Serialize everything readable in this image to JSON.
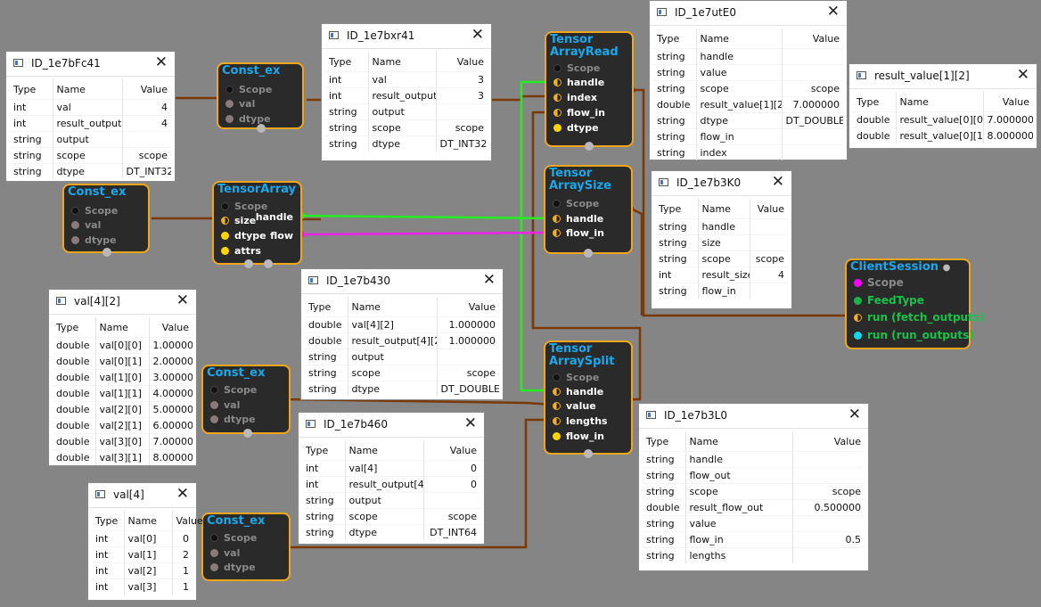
{
  "nodes": {
    "const1": {
      "title": "Const_ex",
      "ports": [
        "Scope",
        "val",
        "dtype"
      ]
    },
    "const2": {
      "title": "Const_ex",
      "ports": [
        "Scope",
        "val",
        "dtype"
      ]
    },
    "const3": {
      "title": "Const_ex",
      "ports": [
        "Scope",
        "val",
        "dtype"
      ]
    },
    "const4": {
      "title": "Const_ex",
      "ports": [
        "Scope",
        "val",
        "dtype"
      ]
    },
    "tensor_array": {
      "title": "TensorArray",
      "ports": [
        "Scope",
        "size",
        "dtype",
        "attrs"
      ],
      "outputs": [
        "handle",
        "flow"
      ]
    },
    "ta_read": {
      "title_line1": "Tensor",
      "title_line2": "ArrayRead",
      "ports": [
        "Scope",
        "handle",
        "index",
        "flow_in",
        "dtype"
      ]
    },
    "ta_size": {
      "title_line1": "Tensor",
      "title_line2": "ArraySize",
      "ports": [
        "Scope",
        "handle",
        "flow_in"
      ]
    },
    "ta_split": {
      "title_line1": "Tensor",
      "title_line2": "ArraySplit",
      "ports": [
        "Scope",
        "handle",
        "value",
        "lengths",
        "flow_in"
      ]
    },
    "client_session": {
      "title": "ClientSession",
      "ports": [
        "Scope",
        "FeedType",
        "run (fetch_outputs)",
        "run (run_outputs)"
      ]
    }
  },
  "windows": {
    "w_bfc41": {
      "title": "ID_1e7bFc41",
      "headers": [
        "Type",
        "Name",
        "Value"
      ],
      "rows": [
        [
          "int",
          "val",
          "4"
        ],
        [
          "int",
          "result_output",
          "4"
        ],
        [
          "string",
          "output",
          ""
        ],
        [
          "string",
          "scope",
          "scope"
        ],
        [
          "string",
          "dtype",
          "DT_INT32"
        ]
      ]
    },
    "w_bxr41": {
      "title": "ID_1e7bxr41",
      "headers": [
        "Type",
        "Name",
        "Value"
      ],
      "rows": [
        [
          "int",
          "val",
          "3"
        ],
        [
          "int",
          "result_output",
          "3"
        ],
        [
          "string",
          "output",
          ""
        ],
        [
          "string",
          "scope",
          "scope"
        ],
        [
          "string",
          "dtype",
          "DT_INT32"
        ]
      ]
    },
    "w_ute0": {
      "title": "ID_1e7utE0",
      "headers": [
        "Type",
        "Name",
        "Value"
      ],
      "rows": [
        [
          "string",
          "handle",
          ""
        ],
        [
          "string",
          "value",
          ""
        ],
        [
          "string",
          "scope",
          "scope"
        ],
        [
          "double",
          "result_value[1][2]",
          "7.000000"
        ],
        [
          "string",
          "dtype",
          "DT_DOUBLE"
        ],
        [
          "string",
          "flow_in",
          ""
        ],
        [
          "string",
          "index",
          ""
        ]
      ]
    },
    "w_result": {
      "title": "result_value[1][2]",
      "headers": [
        "Type",
        "Name",
        "Value"
      ],
      "rows": [
        [
          "double",
          "result_value[0][0]",
          "7.000000"
        ],
        [
          "double",
          "result_value[0][1]",
          "8.000000"
        ]
      ]
    },
    "w_b3k0": {
      "title": "ID_1e7b3K0",
      "headers": [
        "Type",
        "Name",
        "Value"
      ],
      "rows": [
        [
          "string",
          "handle",
          ""
        ],
        [
          "string",
          "size",
          ""
        ],
        [
          "string",
          "scope",
          "scope"
        ],
        [
          "int",
          "result_size",
          "4"
        ],
        [
          "string",
          "flow_in",
          ""
        ]
      ]
    },
    "w_val42": {
      "title": "val[4][2]",
      "headers": [
        "Type",
        "Name",
        "Value"
      ],
      "rows": [
        [
          "double",
          "val[0][0]",
          "1.000000"
        ],
        [
          "double",
          "val[0][1]",
          "2.000000"
        ],
        [
          "double",
          "val[1][0]",
          "3.000000"
        ],
        [
          "double",
          "val[1][1]",
          "4.000000"
        ],
        [
          "double",
          "val[2][0]",
          "5.000000"
        ],
        [
          "double",
          "val[2][1]",
          "6.000000"
        ],
        [
          "double",
          "val[3][0]",
          "7.000000"
        ],
        [
          "double",
          "val[3][1]",
          "8.000000"
        ]
      ]
    },
    "w_b430": {
      "title": "ID_1e7b430",
      "headers": [
        "Type",
        "Name",
        "Value"
      ],
      "rows": [
        [
          "double",
          "val[4][2]",
          "1.000000"
        ],
        [
          "double",
          "result_output[4][2]",
          "1.000000"
        ],
        [
          "string",
          "output",
          ""
        ],
        [
          "string",
          "scope",
          "scope"
        ],
        [
          "string",
          "dtype",
          "DT_DOUBLE"
        ]
      ]
    },
    "w_b460": {
      "title": "ID_1e7b460",
      "headers": [
        "Type",
        "Name",
        "Value"
      ],
      "rows": [
        [
          "int",
          "val[4]",
          "0"
        ],
        [
          "int",
          "result_output[4]",
          "0"
        ],
        [
          "string",
          "output",
          ""
        ],
        [
          "string",
          "scope",
          "scope"
        ],
        [
          "string",
          "dtype",
          "DT_INT64"
        ]
      ]
    },
    "w_b3l0": {
      "title": "ID_1e7b3L0",
      "headers": [
        "Type",
        "Name",
        "Value"
      ],
      "rows": [
        [
          "string",
          "handle",
          ""
        ],
        [
          "string",
          "flow_out",
          ""
        ],
        [
          "string",
          "scope",
          "scope"
        ],
        [
          "double",
          "result_flow_out",
          "0.500000"
        ],
        [
          "string",
          "value",
          ""
        ],
        [
          "string",
          "flow_in",
          "0.5"
        ],
        [
          "string",
          "lengths",
          ""
        ]
      ]
    },
    "w_val4": {
      "title": "val[4]",
      "headers": [
        "Type",
        "Name",
        "Value"
      ],
      "rows": [
        [
          "int",
          "val[0]",
          "0"
        ],
        [
          "int",
          "val[1]",
          "2"
        ],
        [
          "int",
          "val[2]",
          "1"
        ],
        [
          "int",
          "val[3]",
          "1"
        ]
      ]
    }
  },
  "close_glyph": "✕",
  "colors": {
    "canvas": "#858585",
    "node_border": "#f0a71e",
    "node_bg": "#2a2a2a",
    "title": "#1aa8ec",
    "wire": "#7a3a08",
    "handle_wire": "#22ee22",
    "flow_wire": "#ee22ee"
  }
}
